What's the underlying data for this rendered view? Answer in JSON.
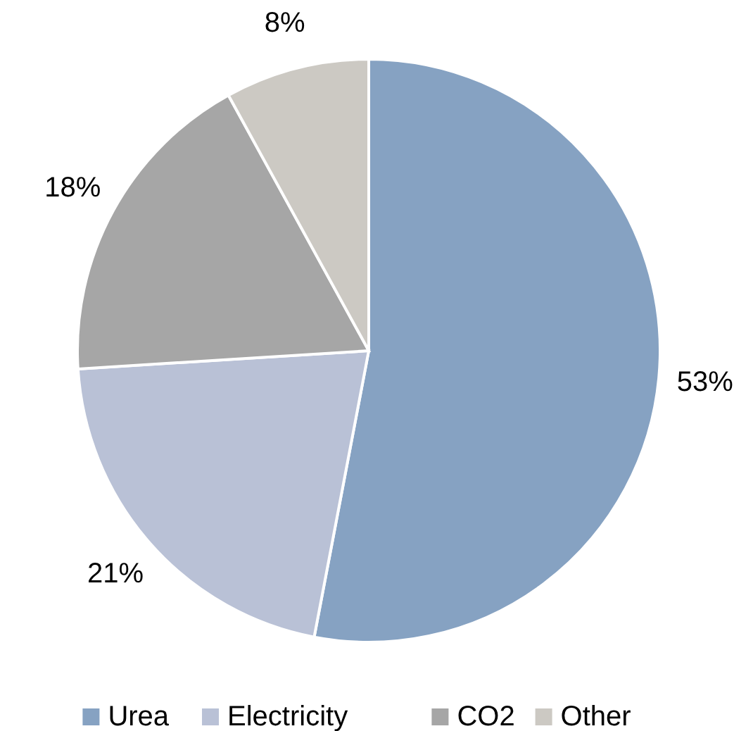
{
  "chart_data": {
    "type": "pie",
    "categories": [
      "Urea",
      "Electricity",
      "CO2",
      "Other"
    ],
    "values": [
      53,
      21,
      18,
      8
    ],
    "colors": [
      "#86a2c2",
      "#b9c1d6",
      "#a6a6a6",
      "#ccc9c3"
    ],
    "value_labels": [
      "53%",
      "21%",
      "18%",
      "8%"
    ],
    "legend": "bottom"
  }
}
